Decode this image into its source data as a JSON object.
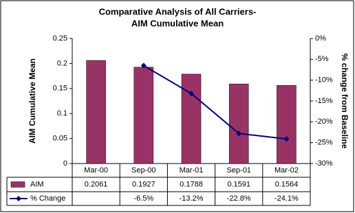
{
  "chart_data": {
    "type": "bar",
    "title": [
      "Comparative Analysis of All Carriers-",
      "AIM Cumulative Mean"
    ],
    "y_label": "AIM Cumulative Mean",
    "y2_label": "% change from Baseline",
    "categories": [
      "Mar-00",
      "Sep-00",
      "Mar-01",
      "Sep-01",
      "Mar-02"
    ],
    "series": [
      {
        "name": "AIM",
        "type": "bar",
        "color": "#993366",
        "values": [
          0.2061,
          0.1927,
          0.1788,
          0.1591,
          0.1564
        ]
      },
      {
        "name": "% Change",
        "type": "line",
        "axis": "y2",
        "color": "#000080",
        "values": [
          null,
          -6.5,
          -13.2,
          -22.8,
          -24.1
        ],
        "value_labels": [
          null,
          "-6.5%",
          "-13.2%",
          "-22.8%",
          "-24.1%"
        ]
      }
    ],
    "ylim": [
      0,
      0.25
    ],
    "yticks": [
      0,
      0.05,
      0.1,
      0.15,
      0.2,
      0.25
    ],
    "y2lim": [
      -30,
      0
    ],
    "y2ticks": [
      {
        "value": -30,
        "label": "-30%"
      },
      {
        "value": -25,
        "label": "-25%"
      },
      {
        "value": -20,
        "label": "-20%"
      },
      {
        "value": -15,
        "label": "-15%"
      },
      {
        "value": -10,
        "label": "-10%"
      },
      {
        "value": -5,
        "label": "-5%"
      },
      {
        "value": 0,
        "label": "0%"
      }
    ],
    "data_table": true
  }
}
